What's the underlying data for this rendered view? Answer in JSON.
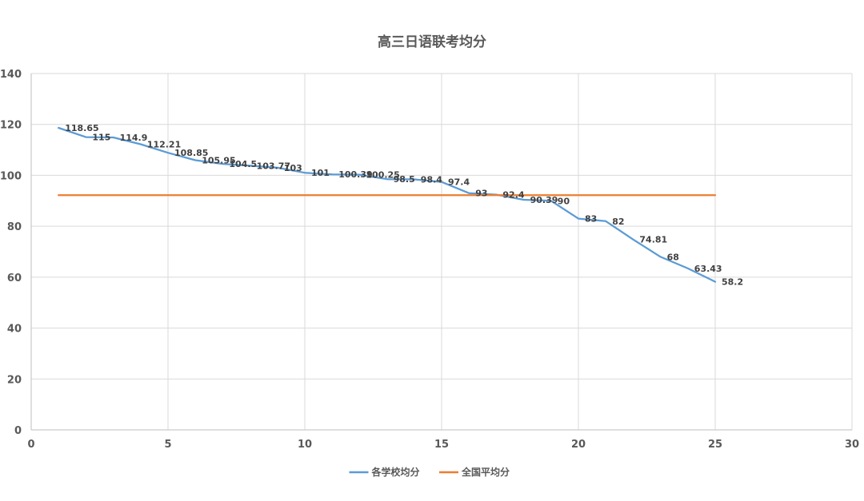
{
  "chart_data": {
    "type": "line",
    "title": "高三日语联考均分",
    "xlabel": "",
    "ylabel": "",
    "xlim": [
      0,
      30
    ],
    "ylim": [
      0,
      140
    ],
    "x_ticks": [
      0,
      5,
      10,
      15,
      20,
      25,
      30
    ],
    "y_ticks": [
      0,
      20,
      40,
      60,
      80,
      100,
      120,
      140
    ],
    "grid": true,
    "legend_position": "bottom",
    "series": [
      {
        "name": "各学校均分",
        "color": "#5b9bd5",
        "x": [
          1,
          2,
          3,
          4,
          5,
          6,
          7,
          8,
          9,
          10,
          11,
          12,
          13,
          14,
          15,
          16,
          17,
          18,
          19,
          20,
          21,
          22,
          23,
          24,
          25
        ],
        "values": [
          118.65,
          115,
          114.9,
          112.21,
          108.85,
          105.95,
          104.5,
          103.77,
          103,
          101,
          100.39,
          100.25,
          98.5,
          98.4,
          97.4,
          93,
          92.4,
          90.39,
          90,
          83,
          82,
          74.81,
          68,
          63.43,
          58.2
        ],
        "data_labels": [
          "118.65",
          "115",
          "114.9",
          "112.21",
          "108.85",
          "105.95",
          "104.5",
          "103.77",
          "103",
          "101",
          "100.39",
          "100.25",
          "98.5",
          "98.4",
          "97.4",
          "93",
          "92.4",
          "90.39",
          "90",
          "83",
          "82",
          "74.81",
          "68",
          "63.43",
          "58.2"
        ]
      },
      {
        "name": "全国平均分",
        "color": "#ed7d31",
        "x": [
          1,
          25
        ],
        "values": [
          92.2,
          92.2
        ]
      }
    ]
  }
}
